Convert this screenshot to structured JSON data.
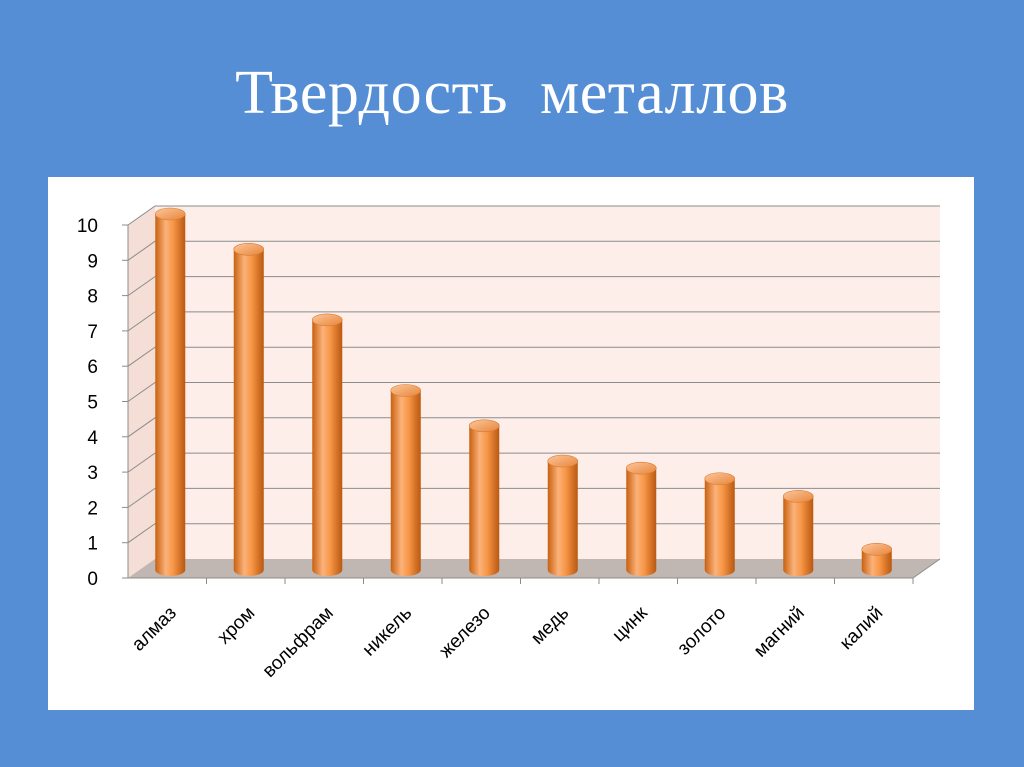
{
  "slide": {
    "title": "Твердость  металлов",
    "background_color": "#558ed5"
  },
  "chart_data": {
    "type": "bar",
    "style": "3d-cylinder",
    "categories": [
      "алмаз",
      "хром",
      "вольфрам",
      "никель",
      "железо",
      "медь",
      "цинк",
      "золото",
      "магний",
      "калий"
    ],
    "series": [
      {
        "values": [
          10,
          9,
          7,
          5,
          4,
          3,
          2.8,
          2.5,
          2,
          0.5
        ],
        "color": "#f79646"
      }
    ],
    "ylim": [
      0,
      10
    ],
    "yticks": [
      0,
      1,
      2,
      3,
      4,
      5,
      6,
      7,
      8,
      9,
      10
    ],
    "grid": true,
    "legend": "none",
    "plot_background": "#fdeee9",
    "floor_color": "#c0b6b2"
  }
}
